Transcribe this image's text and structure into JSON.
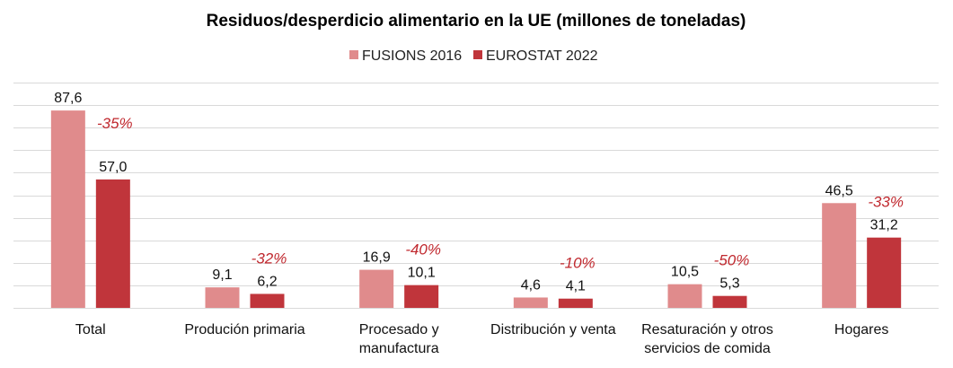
{
  "chart_data": {
    "type": "bar",
    "title": "Residuos/desperdicio alimentario en la UE (millones de toneladas)",
    "xlabel": "",
    "ylabel": "",
    "ylim": [
      0,
      100
    ],
    "grid": true,
    "grid_step": 10,
    "legend_position": "top-center",
    "categories": [
      [
        "Total"
      ],
      [
        "Produción primaria"
      ],
      [
        "Procesado y",
        "manufactura"
      ],
      [
        "Distribución y venta"
      ],
      [
        "Resaturación y otros",
        "servicios de comida"
      ],
      [
        "Hogares"
      ]
    ],
    "series": [
      {
        "name": "FUSIONS 2016",
        "color": "#e08b8c",
        "values": [
          87.6,
          9.1,
          16.9,
          4.6,
          10.5,
          46.5
        ],
        "labels": [
          "87,6",
          "9,1",
          "16,9",
          "4,6",
          "10,5",
          "46,5"
        ]
      },
      {
        "name": "EUROSTAT 2022",
        "color": "#c0353b",
        "values": [
          57.0,
          6.2,
          10.1,
          4.1,
          5.3,
          31.2
        ],
        "labels": [
          "57,0",
          "6,2",
          "10,1",
          "4,1",
          "5,3",
          "31,2"
        ]
      }
    ],
    "annotations": [
      "-35%",
      "-32%",
      "-40%",
      "-10%",
      "-50%",
      "-33%"
    ],
    "annotation_color": "#c0282e",
    "gridline_color": "#d9d9d9"
  }
}
